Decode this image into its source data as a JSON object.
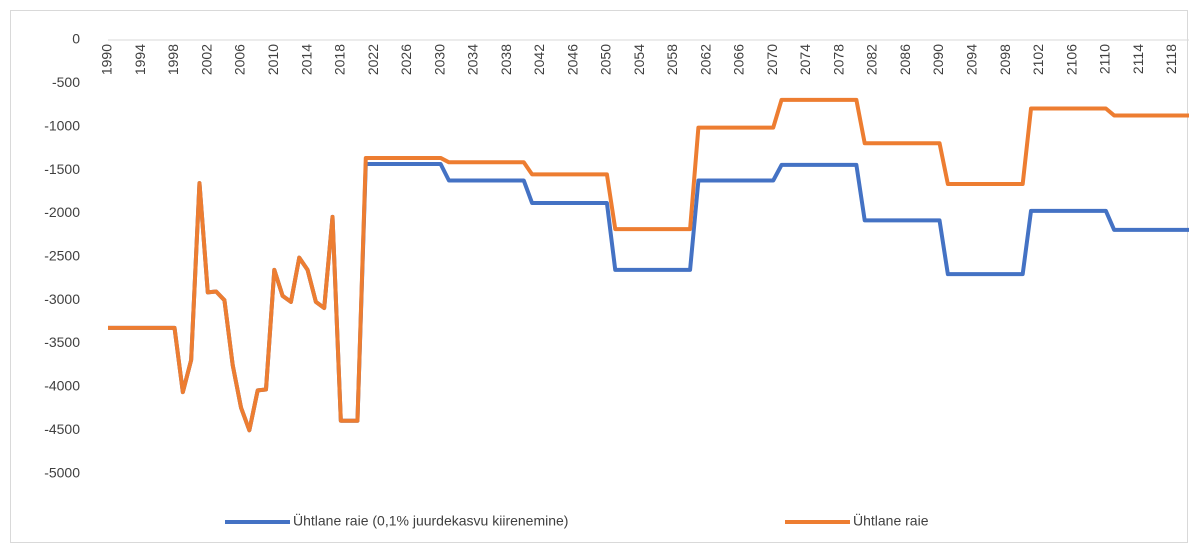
{
  "chart_data": {
    "type": "line",
    "x": [
      1990,
      1991,
      1992,
      1993,
      1994,
      1995,
      1996,
      1997,
      1998,
      1999,
      2000,
      2001,
      2002,
      2003,
      2004,
      2005,
      2006,
      2007,
      2008,
      2009,
      2010,
      2011,
      2012,
      2013,
      2014,
      2015,
      2016,
      2017,
      2018,
      2019,
      2020,
      2021,
      2022,
      2023,
      2024,
      2025,
      2026,
      2027,
      2028,
      2029,
      2030,
      2031,
      2032,
      2033,
      2034,
      2035,
      2036,
      2037,
      2038,
      2039,
      2040,
      2041,
      2042,
      2043,
      2044,
      2045,
      2046,
      2047,
      2048,
      2049,
      2050,
      2051,
      2052,
      2053,
      2054,
      2055,
      2056,
      2057,
      2058,
      2059,
      2060,
      2061,
      2062,
      2063,
      2064,
      2065,
      2066,
      2067,
      2068,
      2069,
      2070,
      2071,
      2072,
      2073,
      2074,
      2075,
      2076,
      2077,
      2078,
      2079,
      2080,
      2081,
      2082,
      2083,
      2084,
      2085,
      2086,
      2087,
      2088,
      2089,
      2090,
      2091,
      2092,
      2093,
      2094,
      2095,
      2096,
      2097,
      2098,
      2099,
      2100,
      2101,
      2102,
      2103,
      2104,
      2105,
      2106,
      2107,
      2108,
      2109,
      2110,
      2111,
      2112,
      2113,
      2114,
      2115,
      2116,
      2117,
      2118,
      2119,
      2120
    ],
    "series": [
      {
        "name": "Ühtlane raie (0,1% juurdekasvu kiirenemine)",
        "color": "#4472c4",
        "values": [
          -3320,
          -3320,
          -3320,
          -3320,
          -3320,
          -3320,
          -3320,
          -3320,
          -3320,
          -4060,
          -3690,
          -1650,
          -2910,
          -2900,
          -3000,
          -3750,
          -4240,
          -4500,
          -4040,
          -4030,
          -2650,
          -2950,
          -3020,
          -2510,
          -2650,
          -3020,
          -3090,
          -2040,
          -4390,
          -4390,
          -4390,
          -1430,
          -1430,
          -1430,
          -1430,
          -1430,
          -1430,
          -1430,
          -1430,
          -1430,
          -1430,
          -1620,
          -1620,
          -1620,
          -1620,
          -1620,
          -1620,
          -1620,
          -1620,
          -1620,
          -1620,
          -1880,
          -1880,
          -1880,
          -1880,
          -1880,
          -1880,
          -1880,
          -1880,
          -1880,
          -1880,
          -2650,
          -2650,
          -2650,
          -2650,
          -2650,
          -2650,
          -2650,
          -2650,
          -2650,
          -2650,
          -1620,
          -1620,
          -1620,
          -1620,
          -1620,
          -1620,
          -1620,
          -1620,
          -1620,
          -1620,
          -1440,
          -1440,
          -1440,
          -1440,
          -1440,
          -1440,
          -1440,
          -1440,
          -1440,
          -1440,
          -2080,
          -2080,
          -2080,
          -2080,
          -2080,
          -2080,
          -2080,
          -2080,
          -2080,
          -2080,
          -2700,
          -2700,
          -2700,
          -2700,
          -2700,
          -2700,
          -2700,
          -2700,
          -2700,
          -2700,
          -1970,
          -1970,
          -1970,
          -1970,
          -1970,
          -1970,
          -1970,
          -1970,
          -1970,
          -1970,
          -2190,
          -2190,
          -2190,
          -2190,
          -2190,
          -2190,
          -2190,
          -2190,
          -2190,
          -2190
        ]
      },
      {
        "name": "Ühtlane raie",
        "color": "#ed7d31",
        "values": [
          -3320,
          -3320,
          -3320,
          -3320,
          -3320,
          -3320,
          -3320,
          -3320,
          -3320,
          -4060,
          -3690,
          -1650,
          -2910,
          -2900,
          -3000,
          -3750,
          -4240,
          -4500,
          -4040,
          -4030,
          -2650,
          -2950,
          -3020,
          -2510,
          -2650,
          -3020,
          -3090,
          -2040,
          -4390,
          -4390,
          -4390,
          -1360,
          -1360,
          -1360,
          -1360,
          -1360,
          -1360,
          -1360,
          -1360,
          -1360,
          -1360,
          -1410,
          -1410,
          -1410,
          -1410,
          -1410,
          -1410,
          -1410,
          -1410,
          -1410,
          -1410,
          -1550,
          -1550,
          -1550,
          -1550,
          -1550,
          -1550,
          -1550,
          -1550,
          -1550,
          -1550,
          -2180,
          -2180,
          -2180,
          -2180,
          -2180,
          -2180,
          -2180,
          -2180,
          -2180,
          -2180,
          -1010,
          -1010,
          -1010,
          -1010,
          -1010,
          -1010,
          -1010,
          -1010,
          -1010,
          -1010,
          -690,
          -690,
          -690,
          -690,
          -690,
          -690,
          -690,
          -690,
          -690,
          -690,
          -1190,
          -1190,
          -1190,
          -1190,
          -1190,
          -1190,
          -1190,
          -1190,
          -1190,
          -1190,
          -1660,
          -1660,
          -1660,
          -1660,
          -1660,
          -1660,
          -1660,
          -1660,
          -1660,
          -1660,
          -790,
          -790,
          -790,
          -790,
          -790,
          -790,
          -790,
          -790,
          -790,
          -790,
          -870,
          -870,
          -870,
          -870,
          -870,
          -870,
          -870,
          -870,
          -870,
          -870
        ]
      }
    ],
    "xlim": [
      1990,
      2120
    ],
    "xticks": [
      1990,
      1994,
      1998,
      2002,
      2006,
      2010,
      2014,
      2018,
      2022,
      2026,
      2030,
      2034,
      2038,
      2042,
      2046,
      2050,
      2054,
      2058,
      2062,
      2066,
      2070,
      2074,
      2078,
      2082,
      2086,
      2090,
      2094,
      2098,
      2102,
      2106,
      2110,
      2114,
      2118
    ],
    "ylim": [
      -5500,
      0
    ],
    "yticks": [
      0,
      -500,
      -1000,
      -1500,
      -2000,
      -2500,
      -3000,
      -3500,
      -4000,
      -4500,
      -5000
    ],
    "grid": false
  }
}
